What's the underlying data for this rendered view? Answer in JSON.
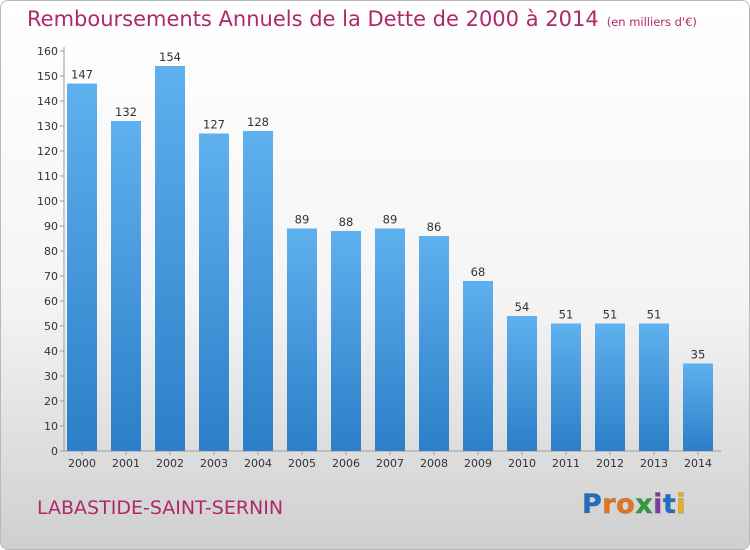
{
  "header": {
    "title": "Remboursements Annuels de la Dette de 2000 à 2014",
    "subtitle": "(en milliers d'€)"
  },
  "footer": {
    "commune": "LABASTIDE-SAINT-SERNIN",
    "logo": {
      "letters": [
        {
          "char": "P",
          "color": "#1f6fc2"
        },
        {
          "char": "r",
          "color": "#e8731a"
        },
        {
          "char": "o",
          "color": "#e8731a"
        },
        {
          "char": "x",
          "color": "#2f9e3a"
        },
        {
          "char": "i",
          "color": "#7b3fa0"
        },
        {
          "char": "t",
          "color": "#1f6fc2"
        },
        {
          "char": "i",
          "color": "#e8b21a"
        }
      ]
    }
  },
  "colors": {
    "accent": "#b0286a",
    "bar_top": "#5fb0ee",
    "bar_bottom": "#2c7fc8"
  },
  "chart_data": {
    "type": "bar",
    "title": "Remboursements Annuels de la Dette de 2000 à 2014",
    "subtitle": "(en milliers d'€)",
    "xlabel": "",
    "ylabel": "",
    "categories": [
      "2000",
      "2001",
      "2002",
      "2003",
      "2004",
      "2005",
      "2006",
      "2007",
      "2008",
      "2009",
      "2010",
      "2011",
      "2012",
      "2013",
      "2014"
    ],
    "values": [
      147,
      132,
      154,
      127,
      128,
      89,
      88,
      89,
      86,
      68,
      54,
      51,
      51,
      51,
      35
    ],
    "ylim": [
      0,
      160
    ],
    "yticks": [
      0,
      10,
      20,
      30,
      40,
      50,
      60,
      70,
      80,
      90,
      100,
      110,
      120,
      130,
      140,
      150,
      160
    ],
    "grid": false,
    "legend": "none"
  }
}
